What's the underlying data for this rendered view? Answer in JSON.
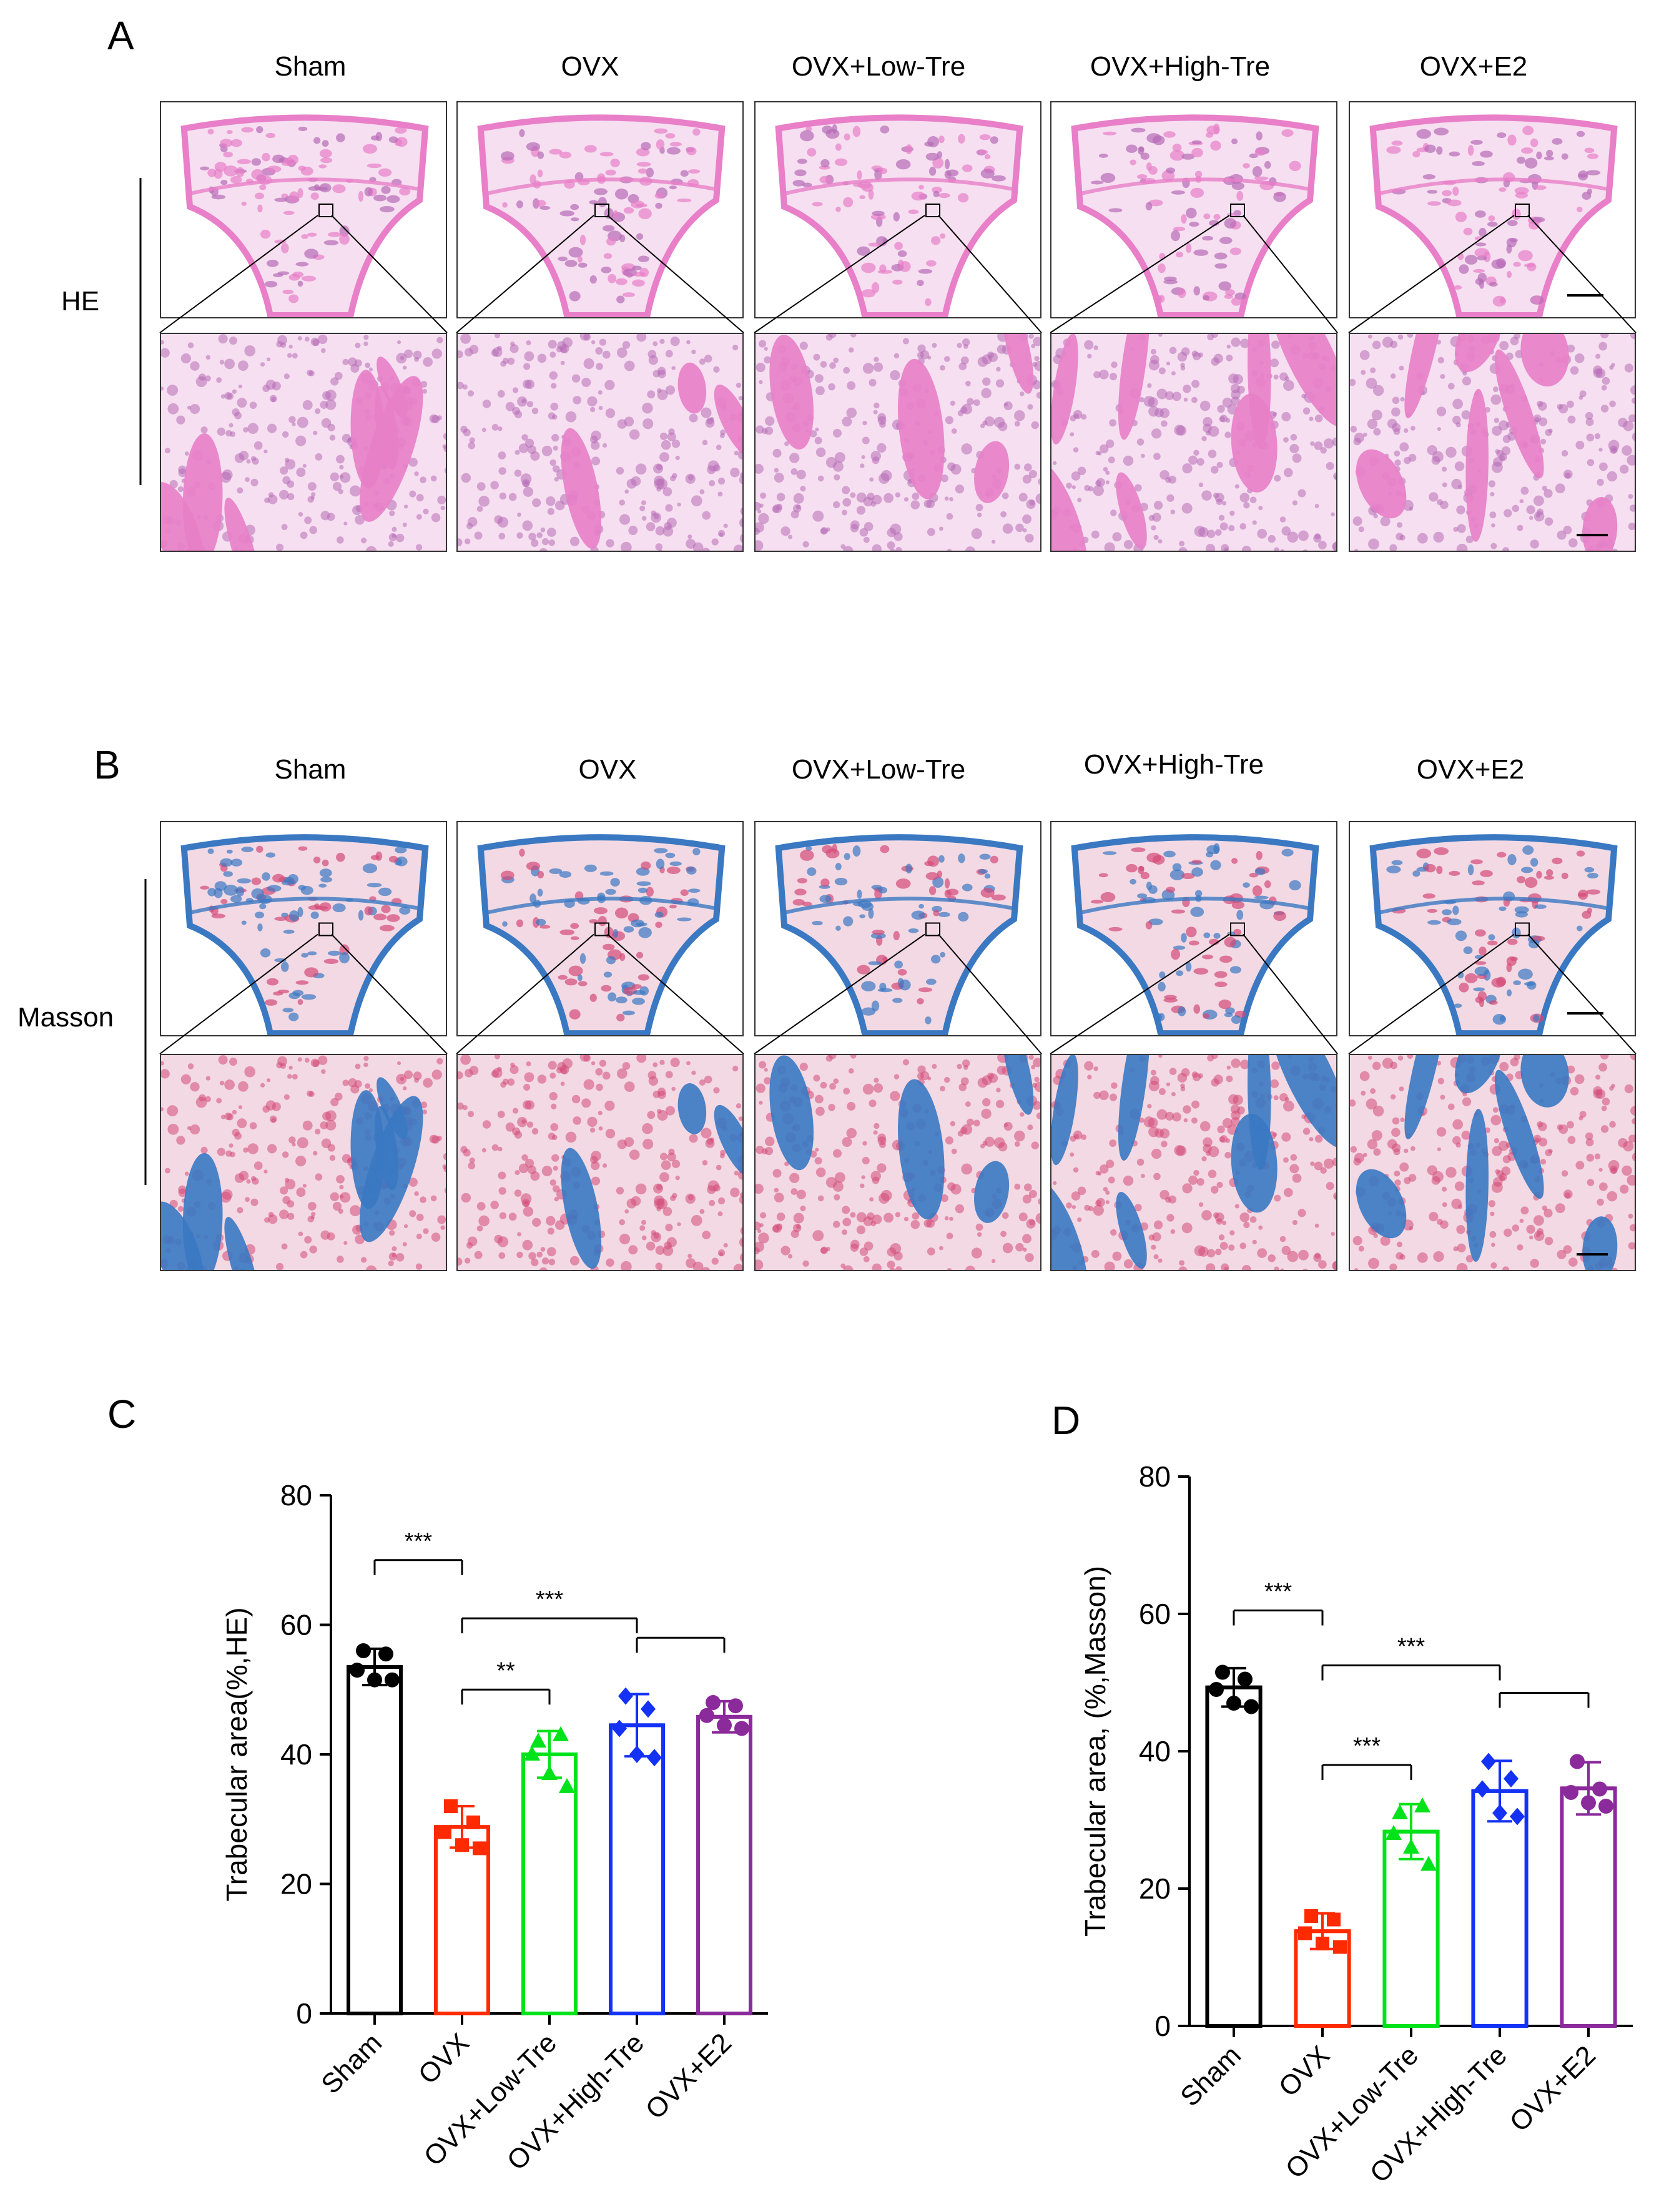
{
  "panel_a": {
    "letter": "A",
    "columns": [
      "Sham",
      "OVX",
      "OVX+Low-Tre",
      "OVX+High-Tre",
      "OVX+E2"
    ],
    "row_label": "HE",
    "colors": {
      "bone": "#e87fc8",
      "marrow": "#b66bb6",
      "bg": "#f6dff0"
    }
  },
  "panel_b": {
    "letter": "B",
    "columns": [
      "Sham",
      "OVX",
      "OVX+Low-Tre",
      "OVX+High-Tre",
      "OVX+E2"
    ],
    "row_label": "Masson",
    "colors": {
      "bone": "#3a78c2",
      "marrow": "#d44a78",
      "bg": "#f2d9e3"
    }
  },
  "chart_data": [
    {
      "type": "bar",
      "panel": "C",
      "categories": [
        "Sham",
        "OVX",
        "OVX+Low-Tre",
        "OVX+High-Tre",
        "OVX+E2"
      ],
      "values": [
        53.5,
        28.8,
        40.0,
        44.5,
        45.8
      ],
      "sd": [
        2.8,
        3.2,
        3.6,
        4.8,
        2.4
      ],
      "points": [
        [
          56,
          55.5,
          53,
          51.5,
          51.5
        ],
        [
          32,
          29.5,
          28,
          26,
          25.5
        ],
        [
          42,
          43,
          40,
          37,
          35
        ],
        [
          49,
          47,
          44,
          40,
          39.5
        ],
        [
          48,
          47.5,
          46,
          44.5,
          44
        ]
      ],
      "ylabel": "Trabecular area(%,HE)",
      "ylim": [
        0,
        80
      ],
      "yticks": [
        0,
        20,
        40,
        60,
        80
      ],
      "colors": [
        "#000000",
        "#ff2a00",
        "#00e21a",
        "#1432f5",
        "#8b2a9a"
      ],
      "markers": [
        "circle",
        "square",
        "triangle",
        "diamond",
        "circle"
      ],
      "significance": [
        {
          "from": 0,
          "to": 1,
          "label": "***",
          "y": 70
        },
        {
          "from": 1,
          "to": 3,
          "label": "***",
          "y": 61
        },
        {
          "from": 3,
          "to": 4,
          "label": "",
          "y": 58
        },
        {
          "from": 1,
          "to": 2,
          "label": "**",
          "y": 50
        }
      ]
    },
    {
      "type": "bar",
      "panel": "D",
      "categories": [
        "Sham",
        "OVX",
        "OVX+Low-Tre",
        "OVX+High-Tre",
        "OVX+E2"
      ],
      "values": [
        49.3,
        13.8,
        28.3,
        34.2,
        34.6
      ],
      "sd": [
        2.8,
        2.6,
        4.0,
        4.4,
        3.8
      ],
      "points": [
        [
          51.5,
          50.5,
          49,
          47,
          46.5
        ],
        [
          16,
          15.5,
          13.5,
          12,
          11.5
        ],
        [
          31,
          32,
          28,
          26,
          23.5
        ],
        [
          38.5,
          36,
          34.5,
          31,
          30.5
        ],
        [
          38.5,
          34.5,
          34,
          32.5,
          32
        ]
      ],
      "ylabel": "Trabecular area, (%,Masson)",
      "ylim": [
        0,
        80
      ],
      "yticks": [
        0,
        20,
        40,
        60,
        80
      ],
      "colors": [
        "#000000",
        "#ff2a00",
        "#00e21a",
        "#1432f5",
        "#8b2a9a"
      ],
      "markers": [
        "circle",
        "square",
        "triangle",
        "diamond",
        "circle"
      ],
      "significance": [
        {
          "from": 0,
          "to": 1,
          "label": "***",
          "y": 60.5
        },
        {
          "from": 1,
          "to": 3,
          "label": "***",
          "y": 52.5
        },
        {
          "from": 3,
          "to": 4,
          "label": "",
          "y": 48.5
        },
        {
          "from": 1,
          "to": 2,
          "label": "***",
          "y": 38
        }
      ]
    }
  ],
  "panel_c_letter": "C",
  "panel_d_letter": "D"
}
